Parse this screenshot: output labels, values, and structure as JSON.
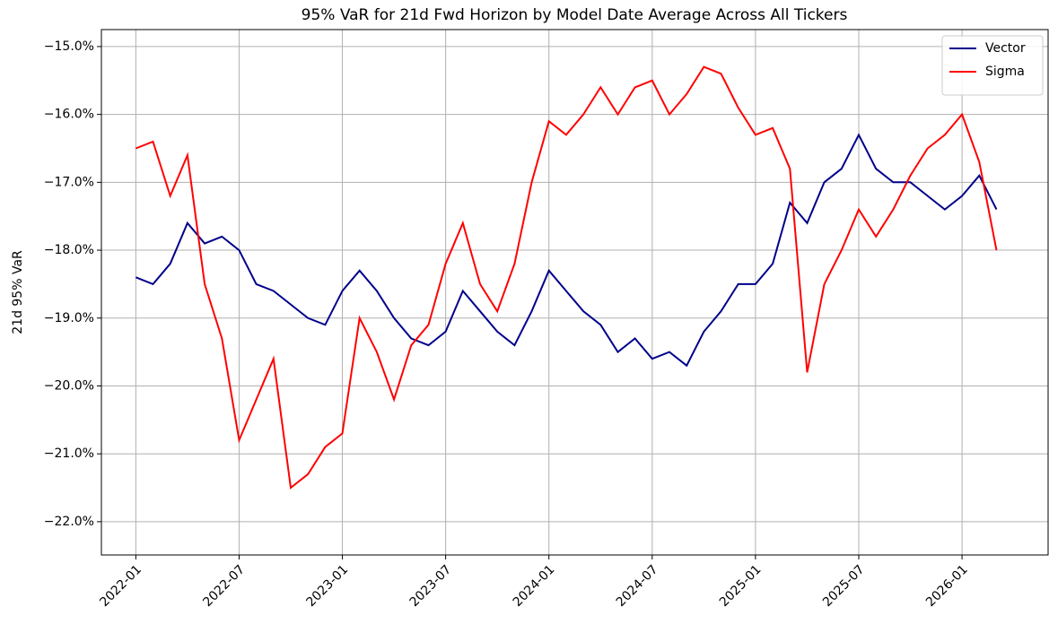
{
  "chart_data": {
    "type": "line",
    "title": "95% VaR for 21d Fwd Horizon by Model Date Average Across All Tickers",
    "ylabel": "21d 95% VaR",
    "x": [
      "2022-01",
      "2022-02",
      "2022-03",
      "2022-04",
      "2022-05",
      "2022-06",
      "2022-07",
      "2022-08",
      "2022-09",
      "2022-10",
      "2022-11",
      "2022-12",
      "2023-01",
      "2023-02",
      "2023-03",
      "2023-04",
      "2023-05",
      "2023-06",
      "2023-07",
      "2023-08",
      "2023-09",
      "2023-10",
      "2023-11",
      "2023-12",
      "2024-01",
      "2024-02",
      "2024-03",
      "2024-04",
      "2024-05",
      "2024-06",
      "2024-07",
      "2024-08",
      "2024-09",
      "2024-10",
      "2024-11",
      "2024-12",
      "2025-01",
      "2025-02",
      "2025-03",
      "2025-04",
      "2025-05",
      "2025-06",
      "2025-07",
      "2025-08",
      "2025-09",
      "2025-10",
      "2025-11",
      "2025-12",
      "2026-01",
      "2026-02",
      "2026-03"
    ],
    "series": [
      {
        "name": "Vector",
        "color": "#00008b",
        "values": [
          -18.4,
          -18.5,
          -18.2,
          -17.6,
          -17.9,
          -17.8,
          -18.0,
          -18.5,
          -18.6,
          -18.8,
          -19.0,
          -19.1,
          -18.6,
          -18.3,
          -18.6,
          -19.0,
          -19.3,
          -19.4,
          -19.2,
          -18.6,
          -18.9,
          -19.2,
          -19.4,
          -18.9,
          -18.3,
          -18.6,
          -18.9,
          -19.1,
          -19.5,
          -19.3,
          -19.6,
          -19.5,
          -19.7,
          -19.2,
          -18.9,
          -18.5,
          -18.5,
          -18.2,
          -17.3,
          -17.6,
          -17.0,
          -16.8,
          -16.3,
          -16.8,
          -17.0,
          -17.0,
          -17.2,
          -17.4,
          -17.2,
          -16.9,
          -17.4
        ]
      },
      {
        "name": "Sigma",
        "color": "#ff0000",
        "values": [
          -16.5,
          -16.4,
          -17.2,
          -16.6,
          -18.5,
          -19.3,
          -20.8,
          -20.2,
          -19.6,
          -21.5,
          -21.3,
          -20.9,
          -20.7,
          -19.0,
          -19.5,
          -20.2,
          -19.4,
          -19.1,
          -18.2,
          -17.6,
          -18.5,
          -18.9,
          -18.2,
          -17.0,
          -16.1,
          -16.3,
          -16.0,
          -15.6,
          -16.0,
          -15.6,
          -15.5,
          -16.0,
          -15.7,
          -15.3,
          -15.4,
          -15.9,
          -16.3,
          -16.2,
          -16.8,
          -19.8,
          -18.5,
          -18.0,
          -17.4,
          -17.8,
          -17.4,
          -16.9,
          -16.5,
          -16.3,
          -16.0,
          -16.7,
          -18.0
        ]
      }
    ],
    "xlim": [
      "2021-11",
      "2026-06"
    ],
    "xticks": [
      "2022-01",
      "2022-07",
      "2023-01",
      "2023-07",
      "2024-01",
      "2024-07",
      "2025-01",
      "2025-07",
      "2026-01"
    ],
    "ylim": [
      -22.49,
      -14.75
    ],
    "yticks": [
      {
        "value": -15,
        "label": "−15.0%"
      },
      {
        "value": -16,
        "label": "−16.0%"
      },
      {
        "value": -17,
        "label": "−17.0%"
      },
      {
        "value": -18,
        "label": "−18.0%"
      },
      {
        "value": -19,
        "label": "−19.0%"
      },
      {
        "value": -20,
        "label": "−20.0%"
      },
      {
        "value": -21,
        "label": "−21.0%"
      },
      {
        "value": -22,
        "label": "−22.0%"
      }
    ],
    "grid": true,
    "legend": "upper right"
  }
}
